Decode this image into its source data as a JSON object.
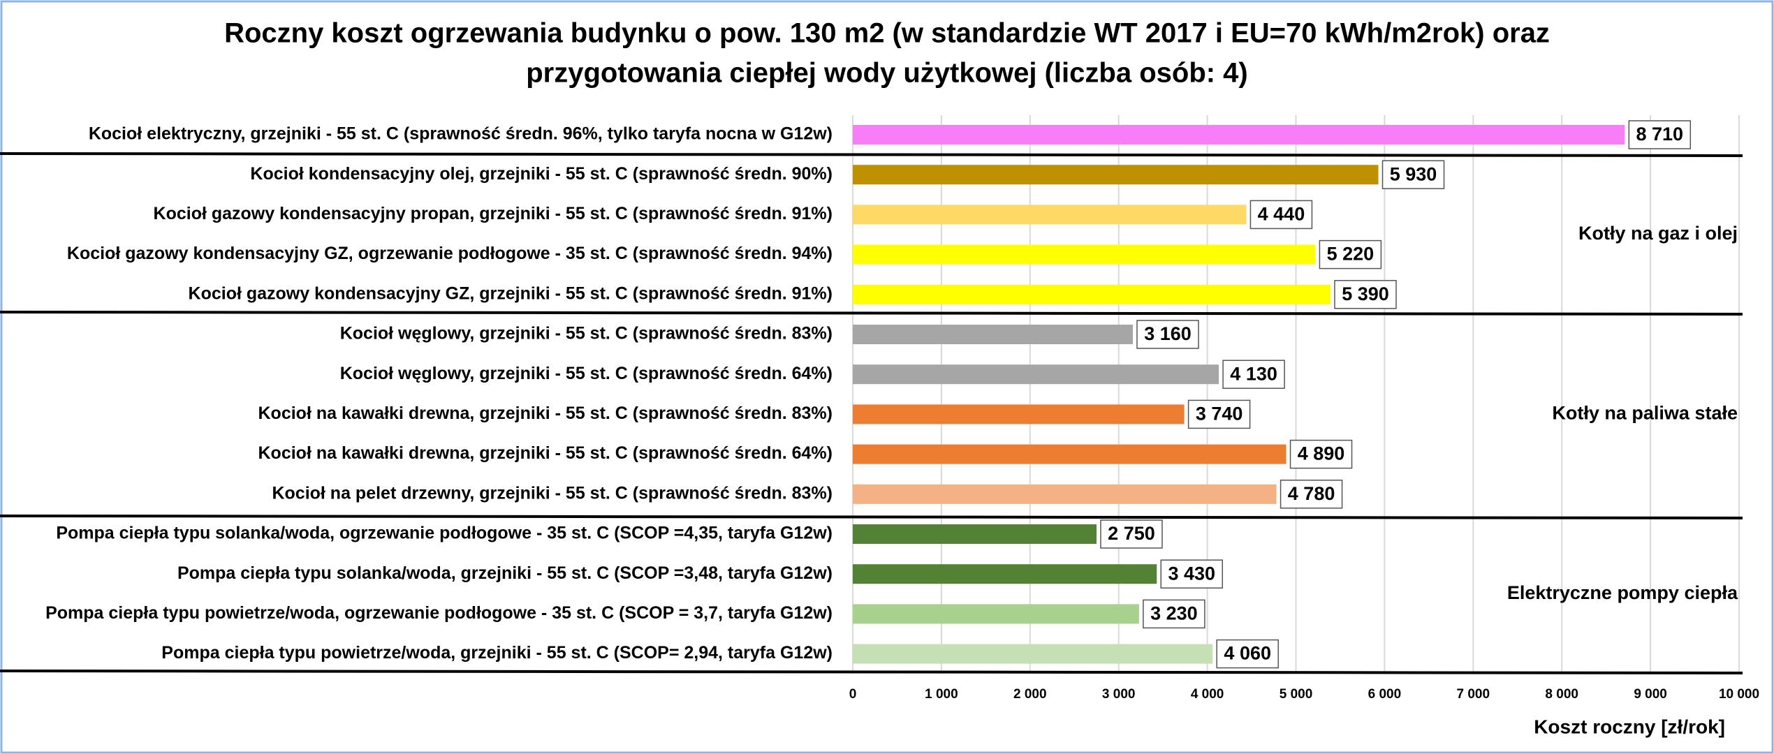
{
  "chart_data": {
    "type": "bar",
    "title": [
      "Roczny koszt ogrzewania budynku o pow. 130 m2 (w standardzie WT 2017 i EU=70 kWh/m2rok) oraz",
      "przygotowania ciepłej wody użytkowej (liczba osób: 4)"
    ],
    "categories": [
      "Kocioł  elektryczny,  grzejniki - 55 st. C  (sprawność średn. 96%, tylko taryfa nocna w G12w)",
      "Kocioł  kondensacyjny olej,  grzejniki - 55 st. C (sprawność średn. 90%)",
      "Kocioł gazowy kondensacyjny propan, grzejniki - 55 st. C (sprawność średn. 91%)",
      "Kocioł gazowy kondensacyjny GZ, ogrzewanie podłogowe - 35 st. C (sprawność średn. 94%)",
      "Kocioł gazowy kondensacyjny GZ, grzejniki - 55 st. C (sprawność średn. 91%)",
      "Kocioł węglowy,  grzejniki - 55 st. C (sprawność średn. 83%)",
      "Kocioł węglowy,  grzejniki - 55 st. C (sprawność średn. 64%)",
      "Kocioł na kawałki drewna, grzejniki - 55 st. C (sprawność średn. 83%)",
      "Kocioł na kawałki drewna, grzejniki - 55 st. C (sprawność średn. 64%)",
      "Kocioł na pelet drzewny, grzejniki - 55 st. C (sprawność średn. 83%)",
      "Pompa ciepła typu solanka/woda, ogrzewanie podłogowe - 35 st. C (SCOP =4,35, taryfa G12w)",
      "Pompa ciepła typu solanka/woda, grzejniki - 55 st. C (SCOP =3,48, taryfa G12w)",
      "Pompa ciepła typu powietrze/woda, ogrzewanie podłogowe - 35 st. C (SCOP = 3,7, taryfa G12w)",
      "Pompa ciepła typu powietrze/woda, grzejniki - 55 st. C (SCOP= 2,94, taryfa G12w)"
    ],
    "values": [
      8710,
      5930,
      4440,
      5220,
      5390,
      3160,
      4130,
      3740,
      4890,
      4780,
      2750,
      3430,
      3230,
      4060
    ],
    "value_labels": [
      "8 710",
      "5 930",
      "4 440",
      "5 220",
      "5 390",
      "3 160",
      "4 130",
      "3 740",
      "4 890",
      "4 780",
      "2 750",
      "3 430",
      "3 230",
      "4 060"
    ],
    "colors": [
      "#f77ef7",
      "#bf9000",
      "#ffd966",
      "#ffff00",
      "#ffff00",
      "#a6a6a6",
      "#a6a6a6",
      "#ed7d31",
      "#ed7d31",
      "#f4b183",
      "#548235",
      "#548235",
      "#a9d18e",
      "#c5e0b4"
    ],
    "xlim": [
      0,
      10000
    ],
    "xticks": [
      0,
      {
        "value": 1000,
        "label": "1 000"
      },
      {
        "value": 2000,
        "label": "2 000"
      },
      {
        "value": 3000,
        "label": "3 000"
      },
      {
        "value": 4000,
        "label": "4 000"
      },
      {
        "value": 5000,
        "label": "5 000"
      },
      {
        "value": 6000,
        "label": "6 000"
      },
      {
        "value": 7000,
        "label": "7 000"
      },
      {
        "value": 8000,
        "label": "8 000"
      },
      {
        "value": 9000,
        "label": "9 000"
      },
      {
        "value": 10000,
        "label": "10 000"
      }
    ],
    "x_label": "Koszt roczny [zł/rok]",
    "annotations": [
      "Kotły na gaz i olej",
      "Kotły na paliwa stałe",
      "Elektryczne pompy ciepła"
    ],
    "grid": true
  }
}
